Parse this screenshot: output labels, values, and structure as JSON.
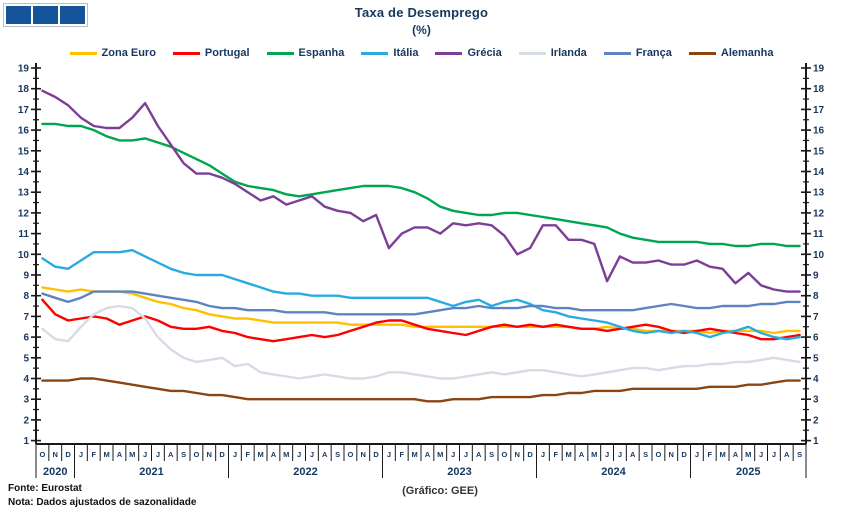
{
  "logo": {
    "label": "GEE logo",
    "square_color": "#15549A",
    "square_count": 3
  },
  "header": {
    "title": "Taxa de Desemprego",
    "subtitle": "(%)"
  },
  "footer": {
    "source": "Fonte: Eurostat",
    "note": "Nota: Dados ajustados de sazonalidade"
  },
  "colors": {
    "text": "#17375E",
    "axis": "#1a1a1a",
    "footer": "#111111",
    "background": "#ffffff"
  },
  "chart_data": {
    "type": "line",
    "title": "Taxa de Desemprego",
    "subtitle": "(%)",
    "credit": "(Gráfico: GEE)",
    "xlabel": "",
    "ylabel": "",
    "ylim": [
      1,
      19
    ],
    "y_tick_step": 1,
    "grid": false,
    "legend_position": "top",
    "x_period": "Out 2020 - Set 2025 (mensal)",
    "months": [
      "O",
      "N",
      "D",
      "J",
      "F",
      "M",
      "A",
      "M",
      "J",
      "J",
      "A",
      "S",
      "O",
      "N",
      "D",
      "J",
      "F",
      "M",
      "A",
      "M",
      "J",
      "J",
      "A",
      "S",
      "O",
      "N",
      "D",
      "J",
      "F",
      "M",
      "A",
      "M",
      "J",
      "J",
      "A",
      "S",
      "O",
      "N",
      "D",
      "J",
      "F",
      "M",
      "A",
      "M",
      "J",
      "J",
      "A",
      "S",
      "O",
      "N",
      "D",
      "J",
      "F",
      "M",
      "A",
      "M",
      "J",
      "J",
      "A",
      "S"
    ],
    "years": [
      {
        "label": "2020",
        "start": 0,
        "count": 3
      },
      {
        "label": "2021",
        "start": 3,
        "count": 12
      },
      {
        "label": "2022",
        "start": 15,
        "count": 12
      },
      {
        "label": "2023",
        "start": 27,
        "count": 12
      },
      {
        "label": "2024",
        "start": 39,
        "count": 12
      },
      {
        "label": "2025",
        "start": 51,
        "count": 9
      }
    ],
    "series": [
      {
        "id": "zona-euro",
        "name": "Zona Euro",
        "color": "#FFC000",
        "values": [
          8.4,
          8.3,
          8.2,
          8.3,
          8.2,
          8.2,
          8.2,
          8.1,
          7.9,
          7.7,
          7.6,
          7.4,
          7.3,
          7.1,
          7.0,
          6.9,
          6.9,
          6.8,
          6.7,
          6.7,
          6.7,
          6.7,
          6.7,
          6.7,
          6.6,
          6.6,
          6.6,
          6.6,
          6.6,
          6.5,
          6.5,
          6.5,
          6.5,
          6.5,
          6.5,
          6.5,
          6.5,
          6.5,
          6.5,
          6.5,
          6.5,
          6.5,
          6.4,
          6.4,
          6.5,
          6.4,
          6.4,
          6.3,
          6.3,
          6.3,
          6.3,
          6.3,
          6.2,
          6.3,
          6.3,
          6.3,
          6.3,
          6.2,
          6.3,
          6.3
        ]
      },
      {
        "id": "portugal",
        "name": "Portugal",
        "color": "#FF0000",
        "values": [
          7.8,
          7.1,
          6.8,
          6.9,
          7.0,
          6.9,
          6.6,
          6.8,
          7.0,
          6.8,
          6.5,
          6.4,
          6.4,
          6.5,
          6.3,
          6.2,
          6.0,
          5.9,
          5.8,
          5.9,
          6.0,
          6.1,
          6.0,
          6.1,
          6.3,
          6.5,
          6.7,
          6.8,
          6.8,
          6.6,
          6.4,
          6.3,
          6.2,
          6.1,
          6.3,
          6.5,
          6.6,
          6.5,
          6.6,
          6.5,
          6.6,
          6.5,
          6.4,
          6.4,
          6.3,
          6.4,
          6.5,
          6.6,
          6.5,
          6.3,
          6.2,
          6.3,
          6.4,
          6.3,
          6.2,
          6.1,
          5.9,
          5.9,
          6.0,
          6.1
        ]
      },
      {
        "id": "espanha",
        "name": "Espanha",
        "color": "#00A550",
        "values": [
          16.3,
          16.3,
          16.2,
          16.2,
          16.0,
          15.7,
          15.5,
          15.5,
          15.6,
          15.4,
          15.2,
          14.9,
          14.6,
          14.3,
          13.9,
          13.5,
          13.3,
          13.2,
          13.1,
          12.9,
          12.8,
          12.9,
          13.0,
          13.1,
          13.2,
          13.3,
          13.3,
          13.3,
          13.2,
          13.0,
          12.7,
          12.3,
          12.1,
          12.0,
          11.9,
          11.9,
          12.0,
          12.0,
          11.9,
          11.8,
          11.7,
          11.6,
          11.5,
          11.4,
          11.3,
          11.0,
          10.8,
          10.7,
          10.6,
          10.6,
          10.6,
          10.6,
          10.5,
          10.5,
          10.4,
          10.4,
          10.5,
          10.5,
          10.4,
          10.4
        ]
      },
      {
        "id": "italia",
        "name": "Itália",
        "color": "#29ABE2",
        "values": [
          9.8,
          9.4,
          9.3,
          9.7,
          10.1,
          10.1,
          10.1,
          10.2,
          9.9,
          9.6,
          9.3,
          9.1,
          9.0,
          9.0,
          9.0,
          8.8,
          8.6,
          8.4,
          8.2,
          8.1,
          8.1,
          8.0,
          8.0,
          8.0,
          7.9,
          7.9,
          7.9,
          7.9,
          7.9,
          7.9,
          7.9,
          7.7,
          7.5,
          7.7,
          7.8,
          7.5,
          7.7,
          7.8,
          7.6,
          7.3,
          7.2,
          7.0,
          6.9,
          6.8,
          6.7,
          6.5,
          6.3,
          6.2,
          6.3,
          6.2,
          6.3,
          6.2,
          6.0,
          6.2,
          6.3,
          6.5,
          6.2,
          6.0,
          5.9,
          6.0
        ]
      },
      {
        "id": "grecia",
        "name": "Grécia",
        "color": "#7C3E98",
        "values": [
          17.9,
          17.6,
          17.2,
          16.6,
          16.2,
          16.1,
          16.1,
          16.6,
          17.3,
          16.2,
          15.3,
          14.4,
          13.9,
          13.9,
          13.7,
          13.4,
          13.0,
          12.6,
          12.8,
          12.4,
          12.6,
          12.8,
          12.3,
          12.1,
          12.0,
          11.6,
          11.9,
          10.3,
          11.0,
          11.3,
          11.3,
          11.0,
          11.5,
          11.4,
          11.5,
          11.4,
          10.9,
          10.0,
          10.3,
          11.4,
          11.4,
          10.7,
          10.7,
          10.5,
          8.7,
          9.9,
          9.6,
          9.6,
          9.7,
          9.5,
          9.5,
          9.7,
          9.4,
          9.3,
          8.6,
          9.1,
          8.5,
          8.3,
          8.2,
          8.2
        ]
      },
      {
        "id": "irlanda",
        "name": "Irlanda",
        "color": "#D6DCE6",
        "values": [
          6.4,
          5.9,
          5.8,
          6.5,
          7.1,
          7.4,
          7.5,
          7.4,
          6.9,
          6.0,
          5.4,
          5.0,
          4.8,
          4.9,
          5.0,
          4.6,
          4.7,
          4.3,
          4.2,
          4.1,
          4.0,
          4.1,
          4.2,
          4.1,
          4.0,
          4.0,
          4.1,
          4.3,
          4.3,
          4.2,
          4.1,
          4.0,
          4.0,
          4.1,
          4.2,
          4.3,
          4.2,
          4.3,
          4.4,
          4.4,
          4.3,
          4.2,
          4.1,
          4.2,
          4.3,
          4.4,
          4.5,
          4.5,
          4.4,
          4.5,
          4.6,
          4.6,
          4.7,
          4.7,
          4.8,
          4.8,
          4.9,
          5.0,
          4.9,
          4.8
        ]
      },
      {
        "id": "franca",
        "name": "França",
        "color": "#5E83C2",
        "values": [
          8.1,
          7.9,
          7.7,
          7.9,
          8.2,
          8.2,
          8.2,
          8.2,
          8.1,
          8.0,
          7.9,
          7.8,
          7.7,
          7.5,
          7.4,
          7.4,
          7.3,
          7.3,
          7.3,
          7.2,
          7.2,
          7.2,
          7.2,
          7.1,
          7.1,
          7.1,
          7.1,
          7.1,
          7.1,
          7.1,
          7.2,
          7.3,
          7.4,
          7.4,
          7.5,
          7.4,
          7.4,
          7.4,
          7.5,
          7.5,
          7.4,
          7.4,
          7.3,
          7.3,
          7.3,
          7.3,
          7.3,
          7.4,
          7.5,
          7.6,
          7.5,
          7.4,
          7.4,
          7.5,
          7.5,
          7.5,
          7.6,
          7.6,
          7.7,
          7.7
        ]
      },
      {
        "id": "alemanha",
        "name": "Alemanha",
        "color": "#8B4513",
        "values": [
          3.9,
          3.9,
          3.9,
          4.0,
          4.0,
          3.9,
          3.8,
          3.7,
          3.6,
          3.5,
          3.4,
          3.4,
          3.3,
          3.2,
          3.2,
          3.1,
          3.0,
          3.0,
          3.0,
          3.0,
          3.0,
          3.0,
          3.0,
          3.0,
          3.0,
          3.0,
          3.0,
          3.0,
          3.0,
          3.0,
          2.9,
          2.9,
          3.0,
          3.0,
          3.0,
          3.1,
          3.1,
          3.1,
          3.1,
          3.2,
          3.2,
          3.3,
          3.3,
          3.4,
          3.4,
          3.4,
          3.5,
          3.5,
          3.5,
          3.5,
          3.5,
          3.5,
          3.6,
          3.6,
          3.6,
          3.7,
          3.7,
          3.8,
          3.9,
          3.9
        ]
      }
    ]
  }
}
